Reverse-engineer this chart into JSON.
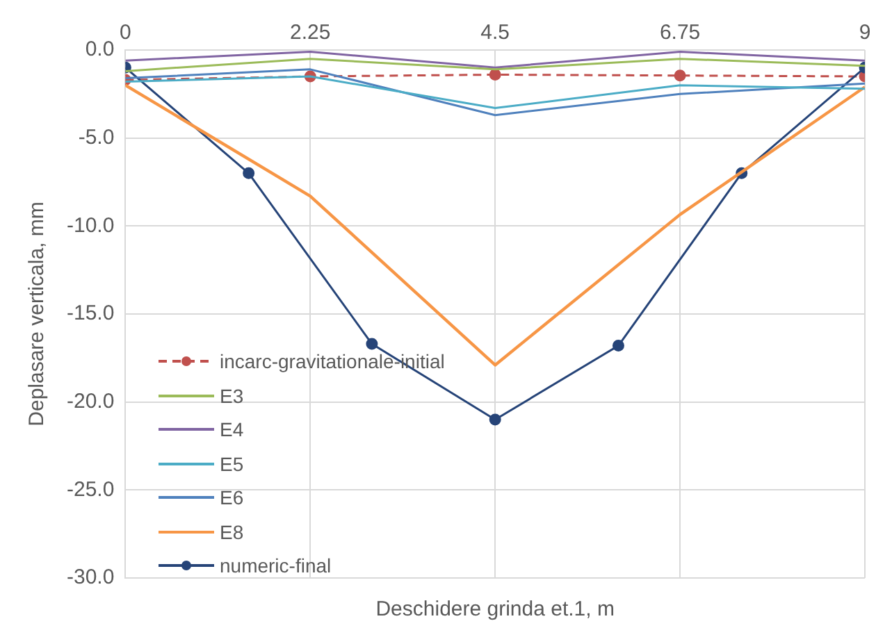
{
  "chart_data": {
    "type": "line",
    "xlabel": "Deschidere grinda et.1, m",
    "ylabel": "Deplasare verticala, mm",
    "xlim": [
      0,
      9
    ],
    "xticks": [
      0,
      2.25,
      4.5,
      6.75,
      9
    ],
    "ylim": [
      -30,
      0
    ],
    "yticks": [
      {
        "value": -30,
        "label": "-30.0"
      },
      {
        "value": -25,
        "label": "-25.0"
      },
      {
        "value": -20,
        "label": "-20.0"
      },
      {
        "value": -15,
        "label": "-15.0"
      },
      {
        "value": -10,
        "label": "-10.0"
      },
      {
        "value": -5,
        "label": "-5.0"
      },
      {
        "value": 0,
        "label": "0.0"
      }
    ],
    "grid": true,
    "legend": "left",
    "series": [
      {
        "name": "incarc-gravitationale-initial",
        "color": "#c0504d",
        "marker": "circle",
        "line_style": "dashed",
        "x": [
          0,
          2.25,
          4.5,
          6.75,
          9
        ],
        "values": [
          -1.7,
          -1.5,
          -1.4,
          -1.45,
          -1.5
        ]
      },
      {
        "name": "E3",
        "color": "#9bbb59",
        "marker": "none",
        "line_style": "solid",
        "x": [
          0,
          2.25,
          4.5,
          6.75,
          9
        ],
        "values": [
          -1.2,
          -0.5,
          -1.1,
          -0.5,
          -0.9
        ]
      },
      {
        "name": "E4",
        "color": "#8064a2",
        "marker": "none",
        "line_style": "solid",
        "x": [
          0,
          2.25,
          4.5,
          6.75,
          9
        ],
        "values": [
          -0.6,
          -0.1,
          -1.0,
          -0.1,
          -0.6
        ]
      },
      {
        "name": "E5",
        "color": "#4bacc6",
        "marker": "none",
        "line_style": "solid",
        "x": [
          0,
          2.25,
          4.5,
          6.75,
          9
        ],
        "values": [
          -1.8,
          -1.5,
          -3.3,
          -2.0,
          -2.2
        ]
      },
      {
        "name": "E6",
        "color": "#4f81bd",
        "marker": "none",
        "line_style": "solid",
        "x": [
          0,
          2.25,
          4.5,
          6.75,
          9
        ],
        "values": [
          -1.6,
          -1.1,
          -3.7,
          -2.5,
          -1.9
        ]
      },
      {
        "name": "E8",
        "color": "#f79646",
        "marker": "none",
        "line_style": "solid",
        "x": [
          0,
          2.25,
          4.5,
          6.75,
          9
        ],
        "values": [
          -2.0,
          -8.3,
          -17.9,
          -9.35,
          -2.1
        ]
      },
      {
        "name": "numeric-final",
        "color": "#264478",
        "marker": "circle",
        "line_style": "solid",
        "x": [
          0,
          1.5,
          3,
          4.5,
          6,
          7.5,
          9
        ],
        "values": [
          -1.0,
          -7.0,
          -16.7,
          -21.0,
          -16.8,
          -7.0,
          -1.0
        ]
      }
    ]
  }
}
